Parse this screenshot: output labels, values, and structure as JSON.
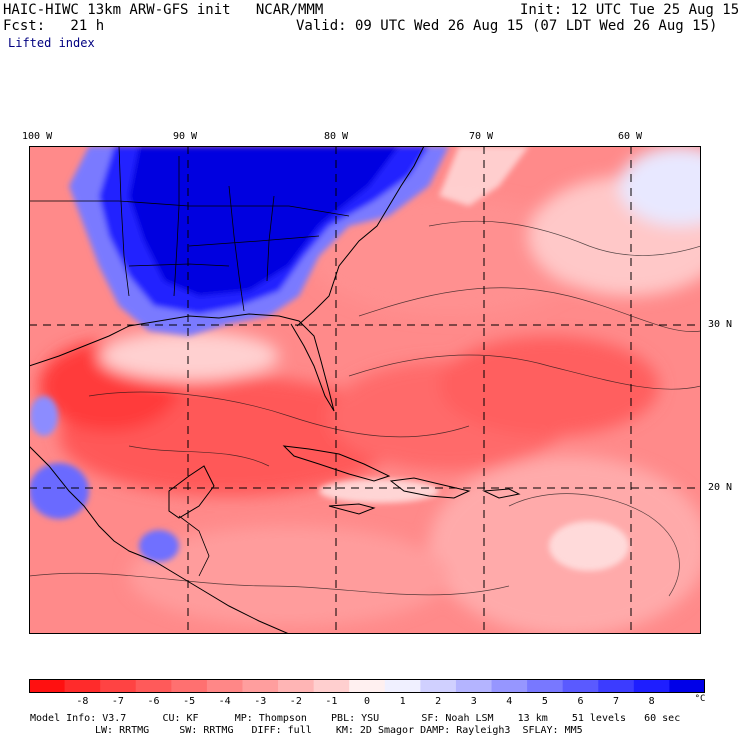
{
  "header": {
    "line1_left": "HAIC-HIWC 13km ARW-GFS init   NCAR/MMM",
    "line1_right": "Init: 12 UTC Tue 25 Aug 15",
    "line2_left": "Fcst:   21 h",
    "line2_right": "Valid: 09 UTC Wed 26 Aug 15 (07 LDT Wed 26 Aug 15)",
    "field_name": "Lifted index"
  },
  "map": {
    "lon_labels": [
      "100 W",
      "90 W",
      "80 W",
      "70 W",
      "60 W"
    ],
    "lat_labels": [
      "30 N",
      "20 N"
    ]
  },
  "colorbar": {
    "unit": "°C",
    "tick_labels": [
      "-8",
      "-7",
      "-6",
      "-5",
      "-4",
      "-3",
      "-2",
      "-1",
      "0",
      "1",
      "2",
      "3",
      "4",
      "5",
      "6",
      "7",
      "8"
    ],
    "colors": [
      "#ff1010",
      "#ff2b2b",
      "#ff4343",
      "#ff5a5a",
      "#ff7070",
      "#ff8787",
      "#ff9e9e",
      "#ffb5b5",
      "#ffcfcf",
      "#fff0f0",
      "#f0f0ff",
      "#d0d0ff",
      "#b4b4ff",
      "#9696ff",
      "#7878ff",
      "#5a5aff",
      "#3c3cff",
      "#1e1eff",
      "#0000e8"
    ]
  },
  "footer": {
    "line1": "Model Info: V3.7      CU: KF      MP: Thompson    PBL: YSU       SF: Noah LSM    13 km    51 levels   60 sec",
    "line2": "LW: RRTMG     SW: RRTMG   DIFF: full    KM: 2D Smagor DAMP: Rayleigh3  SFLAY: MM5"
  }
}
